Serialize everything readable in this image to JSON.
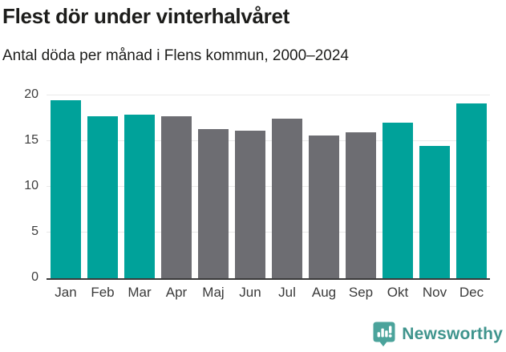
{
  "header": {
    "title": "Flest dör under vinterhalvåret",
    "subtitle": "Antal döda per månad i Flens kommun, 2000–2024"
  },
  "chart_data": {
    "type": "bar",
    "title": "Flest dör under vinterhalvåret",
    "subtitle": "Antal döda per månad i Flens kommun, 2000–2024",
    "categories": [
      "Jan",
      "Feb",
      "Mar",
      "Apr",
      "Maj",
      "Jun",
      "Jul",
      "Aug",
      "Sep",
      "Okt",
      "Nov",
      "Dec"
    ],
    "values": [
      19.5,
      17.7,
      17.9,
      17.7,
      16.3,
      16.1,
      17.5,
      15.6,
      16.0,
      17.0,
      14.5,
      19.1
    ],
    "bar_colors": [
      "teal",
      "teal",
      "teal",
      "gray",
      "gray",
      "gray",
      "gray",
      "gray",
      "gray",
      "teal",
      "teal",
      "teal"
    ],
    "xlabel": "",
    "ylabel": "",
    "ylim": [
      0,
      20
    ],
    "y_ticks": [
      0,
      5,
      10,
      15,
      20
    ],
    "grid": true,
    "legend": false
  },
  "colors": {
    "teal": "#00a29a",
    "gray": "#6d6d72",
    "grid": "#e9e9e9",
    "axis_line": "#3a3a3a",
    "tick_text": "#3d3d3d",
    "title_text": "#1d1d1b",
    "footer_text": "#3f948d",
    "logo_teal": "#4ba39b"
  },
  "footer": {
    "brand": "Newsworthy"
  }
}
